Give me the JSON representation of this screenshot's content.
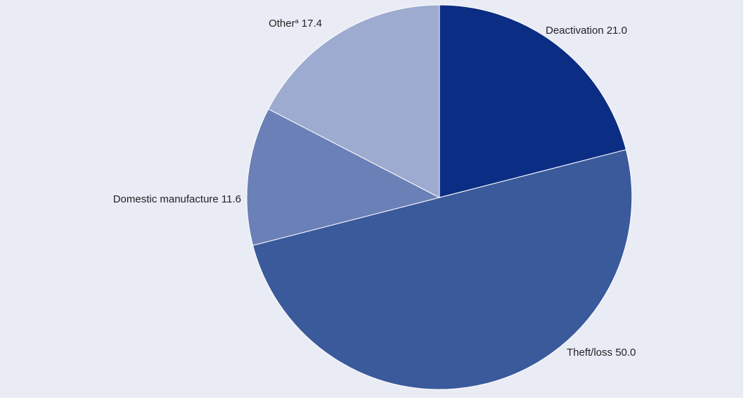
{
  "chart_data": {
    "type": "pie",
    "title": "",
    "start_angle_deg": 0,
    "direction": "clockwise",
    "legend": "none",
    "slices": [
      {
        "label": "Deactivation",
        "value": 21.0,
        "value_label": "21.0",
        "footnote": "",
        "color": "#0b2d84"
      },
      {
        "label": "Theft/loss",
        "value": 50.0,
        "value_label": "50.0",
        "footnote": "",
        "color": "#3b5a9c"
      },
      {
        "label": "Domestic manufacture",
        "value": 11.6,
        "value_label": "11.6",
        "footnote": "",
        "color": "#6b80b6"
      },
      {
        "label": "Other",
        "value": 17.4,
        "value_label": "17.4",
        "footnote": "a",
        "color": "#9dabd0"
      }
    ]
  }
}
